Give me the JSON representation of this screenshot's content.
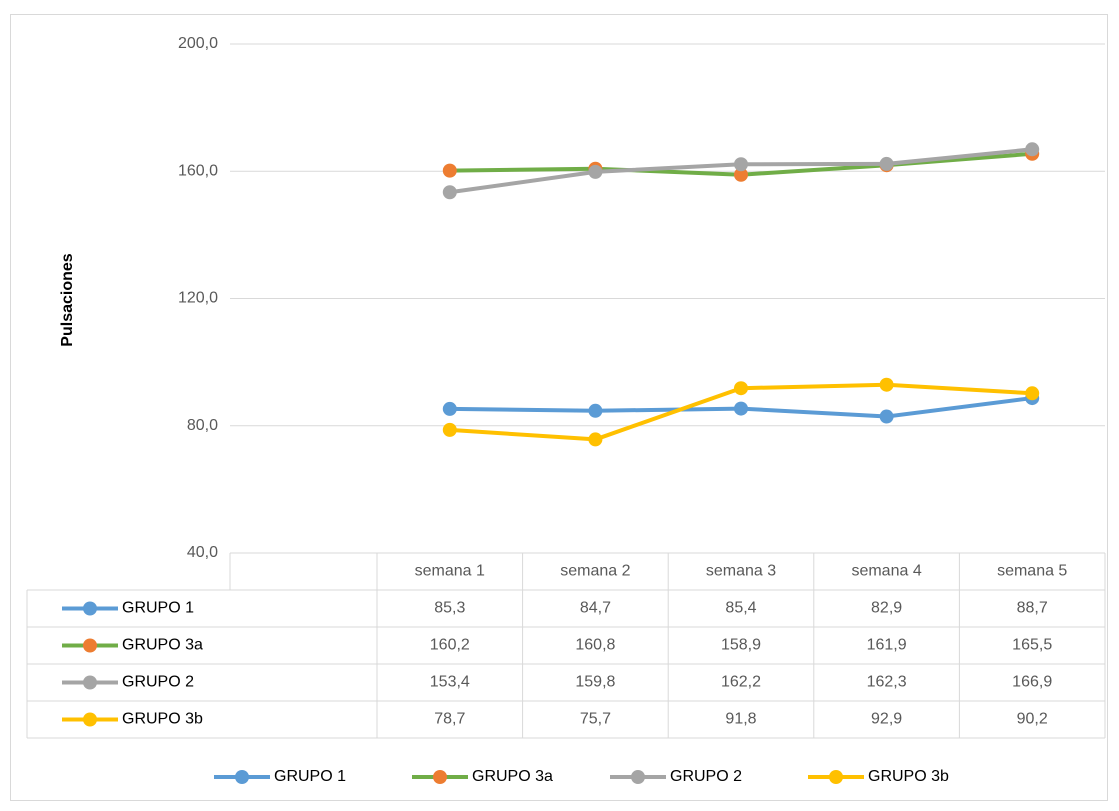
{
  "chart_data": {
    "type": "line",
    "y_label": "Pulsaciones",
    "categories": [
      "semana 1",
      "semana 2",
      "semana 3",
      "semana 4",
      "semana 5"
    ],
    "series": [
      {
        "name": "GRUPO 1",
        "color": "#5b9bd5",
        "marker_color": "#5b9bd5",
        "values": [
          85.3,
          84.7,
          85.4,
          82.9,
          88.7
        ],
        "value_labels": [
          "85,3",
          "84,7",
          "85,4",
          "82,9",
          "88,7"
        ]
      },
      {
        "name": "GRUPO 3a",
        "color": "#70ad47",
        "marker_color": "#ed7d31",
        "values": [
          160.2,
          160.8,
          158.9,
          161.9,
          165.5
        ],
        "value_labels": [
          "160,2",
          "160,8",
          "158,9",
          "161,9",
          "165,5"
        ]
      },
      {
        "name": "GRUPO 2",
        "color": "#a5a5a5",
        "marker_color": "#a5a5a5",
        "values": [
          153.4,
          159.8,
          162.2,
          162.3,
          166.9
        ],
        "value_labels": [
          "153,4",
          "159,8",
          "162,2",
          "162,3",
          "166,9"
        ]
      },
      {
        "name": "GRUPO 3b",
        "color": "#ffc000",
        "marker_color": "#ffc000",
        "values": [
          78.7,
          75.7,
          91.8,
          92.9,
          90.2
        ],
        "value_labels": [
          "78,7",
          "75,7",
          "91,8",
          "92,9",
          "90,2"
        ]
      }
    ],
    "ylim": [
      40,
      200
    ],
    "yticks": [
      {
        "value": 40,
        "label": "40,0"
      },
      {
        "value": 80,
        "label": "80,0"
      },
      {
        "value": 120,
        "label": "120,0"
      },
      {
        "value": 160,
        "label": "160,0"
      },
      {
        "value": 200,
        "label": "200,0"
      }
    ],
    "grid": true,
    "legend": "bottom"
  }
}
